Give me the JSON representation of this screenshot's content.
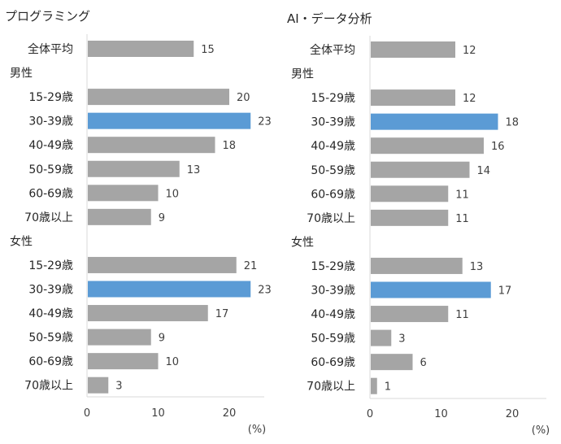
{
  "colors": {
    "bar": "#a5a5a5",
    "highlight": "#5b9bd5",
    "axis": "#d9d9d9",
    "text": "#404040"
  },
  "chart_data": [
    {
      "type": "bar",
      "orientation": "horizontal",
      "title": "プログラミング",
      "xlabel": "(%)",
      "xlim": [
        0,
        25
      ],
      "xticks": [
        "0",
        "10",
        "20"
      ],
      "xtick_values": [
        0,
        10,
        20
      ],
      "rows": [
        {
          "label": "全体平均",
          "value": 15,
          "kind": "bar"
        },
        {
          "label": "男性",
          "kind": "group"
        },
        {
          "label": "15-29歳",
          "value": 20,
          "kind": "bar"
        },
        {
          "label": "30-39歳",
          "value": 23,
          "kind": "bar",
          "highlight": true
        },
        {
          "label": "40-49歳",
          "value": 18,
          "kind": "bar"
        },
        {
          "label": "50-59歳",
          "value": 13,
          "kind": "bar"
        },
        {
          "label": "60-69歳",
          "value": 10,
          "kind": "bar"
        },
        {
          "label": "70歳以上",
          "value": 9,
          "kind": "bar"
        },
        {
          "label": "女性",
          "kind": "group"
        },
        {
          "label": "15-29歳",
          "value": 21,
          "kind": "bar"
        },
        {
          "label": "30-39歳",
          "value": 23,
          "kind": "bar",
          "highlight": true
        },
        {
          "label": "40-49歳",
          "value": 17,
          "kind": "bar"
        },
        {
          "label": "50-59歳",
          "value": 9,
          "kind": "bar"
        },
        {
          "label": "60-69歳",
          "value": 10,
          "kind": "bar"
        },
        {
          "label": "70歳以上",
          "value": 3,
          "kind": "bar"
        }
      ]
    },
    {
      "type": "bar",
      "orientation": "horizontal",
      "title": "AI・データ分析",
      "xlabel": "(%)",
      "xlim": [
        0,
        25
      ],
      "xticks": [
        "0",
        "10",
        "20"
      ],
      "xtick_values": [
        0,
        10,
        20
      ],
      "rows": [
        {
          "label": "全体平均",
          "value": 12,
          "kind": "bar"
        },
        {
          "label": "男性",
          "kind": "group"
        },
        {
          "label": "15-29歳",
          "value": 12,
          "kind": "bar"
        },
        {
          "label": "30-39歳",
          "value": 18,
          "kind": "bar",
          "highlight": true
        },
        {
          "label": "40-49歳",
          "value": 16,
          "kind": "bar"
        },
        {
          "label": "50-59歳",
          "value": 14,
          "kind": "bar"
        },
        {
          "label": "60-69歳",
          "value": 11,
          "kind": "bar"
        },
        {
          "label": "70歳以上",
          "value": 11,
          "kind": "bar"
        },
        {
          "label": "女性",
          "kind": "group"
        },
        {
          "label": "15-29歳",
          "value": 13,
          "kind": "bar"
        },
        {
          "label": "30-39歳",
          "value": 17,
          "kind": "bar",
          "highlight": true
        },
        {
          "label": "40-49歳",
          "value": 11,
          "kind": "bar"
        },
        {
          "label": "50-59歳",
          "value": 3,
          "kind": "bar"
        },
        {
          "label": "60-69歳",
          "value": 6,
          "kind": "bar"
        },
        {
          "label": "70歳以上",
          "value": 1,
          "kind": "bar"
        }
      ]
    }
  ]
}
